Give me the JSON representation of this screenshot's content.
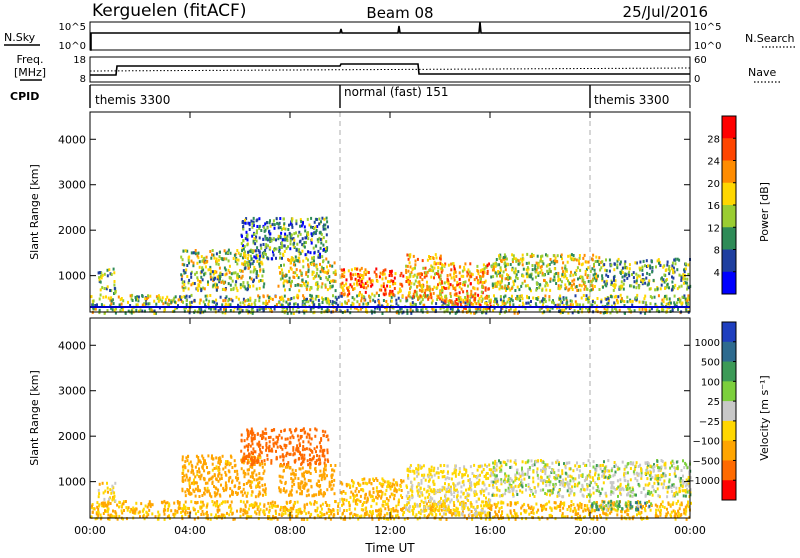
{
  "header": {
    "station": "Kerguelen (fitACF)",
    "beam": "Beam 08",
    "date": "25/Jul/2016"
  },
  "panels": {
    "nsky": {
      "left_label": "N.Sky",
      "right_label": "N.Search",
      "ticks_left": [
        "10^5",
        "10^0"
      ],
      "ticks_right": [
        "10^5",
        "10^0"
      ]
    },
    "freq": {
      "left_label_line1": "Freq.",
      "left_label_line2": "[MHz]",
      "right_label": "Nave",
      "ticks_left": [
        "18",
        "8"
      ],
      "ticks_right": [
        "60",
        "0"
      ]
    },
    "cpid": {
      "label": "CPID",
      "segments": [
        {
          "label": "themis 3300",
          "start_hour": 0
        },
        {
          "label": "normal (fast) 151",
          "start_hour": 10
        },
        {
          "label": "themis 3300",
          "start_hour": 20
        }
      ]
    }
  },
  "chart_data": [
    {
      "type": "heatmap",
      "name": "power",
      "ylabel": "Slant Range [km]",
      "xlabel": "",
      "ylim": [
        200,
        4600
      ],
      "yticks": [
        "1000",
        "2000",
        "3000",
        "4000"
      ],
      "xticks": [
        "00:00",
        "04:00",
        "08:00",
        "12:00",
        "16:00",
        "20:00",
        "00:00"
      ],
      "colorbar_label": "Power [dB]",
      "colorbar_ticks": [
        "28",
        "24",
        "20",
        "16",
        "12",
        "8",
        "4"
      ],
      "colorbar_colors": [
        "#ff0000",
        "#ff4500",
        "#ff8c00",
        "#ffd700",
        "#9acd32",
        "#2e8b57",
        "#1f3f9f",
        "#0000ff"
      ],
      "echo_regions": [
        {
          "t0": 0.0,
          "t1": 24.0,
          "r0": 200,
          "r1": 600,
          "value": 14
        },
        {
          "t0": 0.3,
          "t1": 1.0,
          "r0": 600,
          "r1": 1200,
          "value": 12
        },
        {
          "t0": 3.6,
          "t1": 7.0,
          "r0": 700,
          "r1": 1600,
          "value": 14
        },
        {
          "t0": 6.0,
          "t1": 9.5,
          "r0": 1400,
          "r1": 2300,
          "value": 10
        },
        {
          "t0": 7.5,
          "t1": 9.8,
          "r0": 700,
          "r1": 1400,
          "value": 16
        },
        {
          "t0": 10.0,
          "t1": 12.5,
          "r0": 600,
          "r1": 1200,
          "value": 24
        },
        {
          "t0": 12.6,
          "t1": 14.0,
          "r0": 500,
          "r1": 1500,
          "value": 20
        },
        {
          "t0": 14.0,
          "t1": 16.0,
          "r0": 300,
          "r1": 1300,
          "value": 22
        },
        {
          "t0": 16.0,
          "t1": 20.5,
          "r0": 700,
          "r1": 1500,
          "value": 16
        },
        {
          "t0": 20.5,
          "t1": 24.0,
          "r0": 700,
          "r1": 1400,
          "value": 12
        }
      ]
    },
    {
      "type": "heatmap",
      "name": "velocity",
      "ylabel": "Slant Range [km]",
      "xlabel": "Time UT",
      "ylim": [
        200,
        4600
      ],
      "yticks": [
        "1000",
        "2000",
        "3000",
        "4000"
      ],
      "xticks": [
        "00:00",
        "04:00",
        "08:00",
        "12:00",
        "16:00",
        "20:00",
        "00:00"
      ],
      "colorbar_label": "Velocity [m s⁻¹]",
      "colorbar_ticks": [
        "1000",
        "500",
        "100",
        "25",
        "−25",
        "−100",
        "−500",
        "−1000"
      ],
      "colorbar_colors": [
        "#1f3fbf",
        "#2e6b8f",
        "#3c9a57",
        "#7ccf3c",
        "#c8c8c8",
        "#ffd700",
        "#ffa500",
        "#ff6a00",
        "#ff0000"
      ],
      "echo_regions": [
        {
          "t0": 0.0,
          "t1": 24.0,
          "r0": 200,
          "r1": 600,
          "value": -100
        },
        {
          "t0": 0.3,
          "t1": 1.0,
          "r0": 600,
          "r1": 1000,
          "value": -60
        },
        {
          "t0": 3.6,
          "t1": 7.0,
          "r0": 700,
          "r1": 1600,
          "value": -150
        },
        {
          "t0": 6.0,
          "t1": 9.5,
          "r0": 1400,
          "r1": 2200,
          "value": -600
        },
        {
          "t0": 7.5,
          "t1": 9.8,
          "r0": 700,
          "r1": 1400,
          "value": -200
        },
        {
          "t0": 10.0,
          "t1": 12.5,
          "r0": 600,
          "r1": 1100,
          "value": -120
        },
        {
          "t0": 12.6,
          "t1": 16.0,
          "r0": 300,
          "r1": 1400,
          "value": -40
        },
        {
          "t0": 16.0,
          "t1": 24.0,
          "r0": 700,
          "r1": 1500,
          "value": 0
        },
        {
          "t0": 20.0,
          "t1": 22.5,
          "r0": 400,
          "r1": 600,
          "value": 80
        }
      ]
    }
  ]
}
